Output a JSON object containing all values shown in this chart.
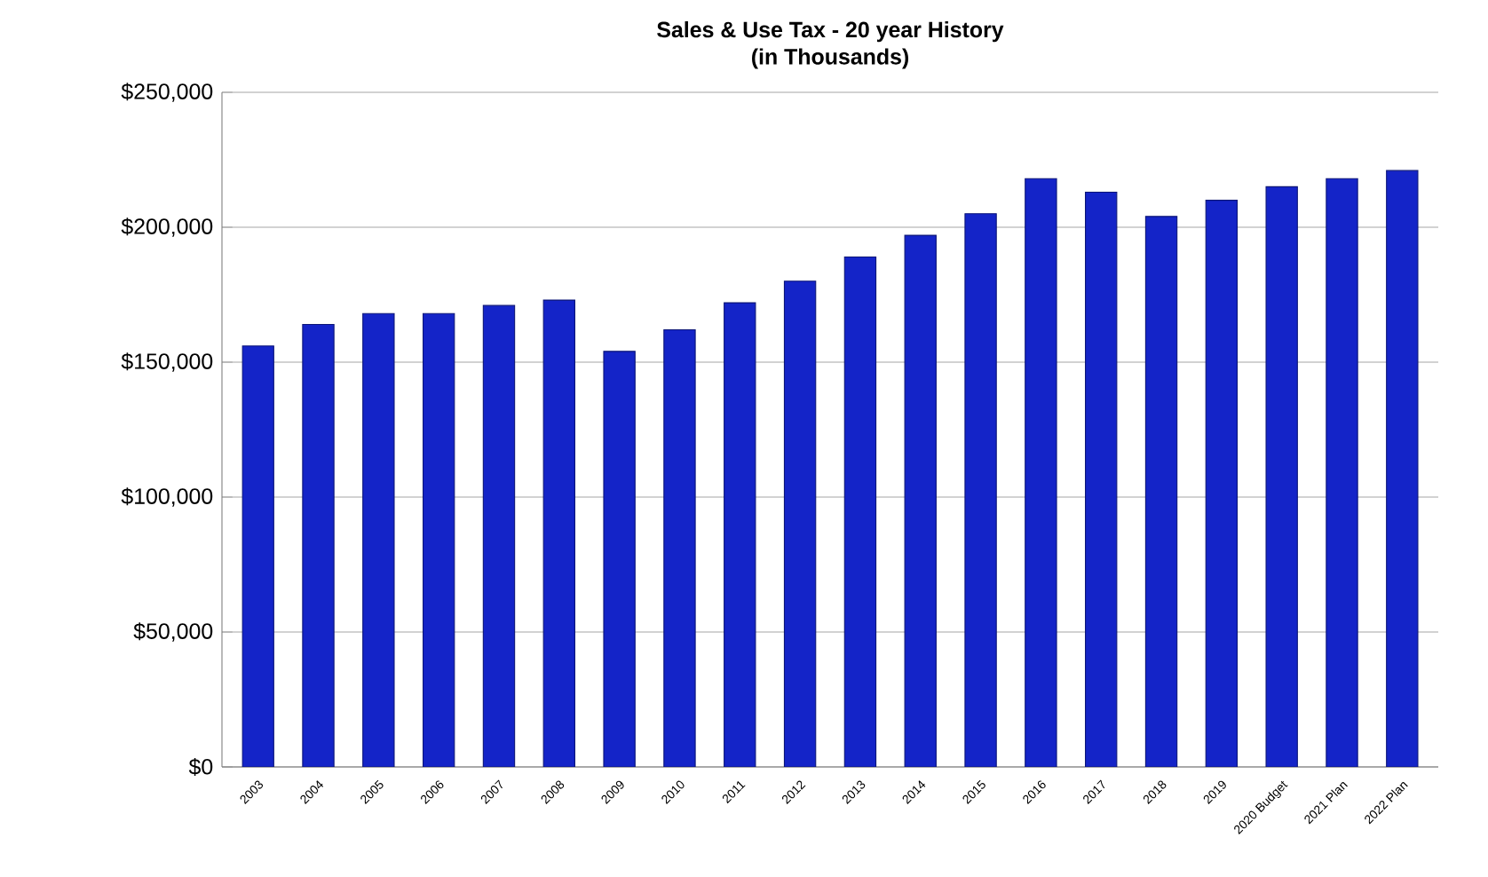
{
  "chart_data": {
    "type": "bar",
    "title": "Sales & Use Tax - 20 year History",
    "subtitle": "(in Thousands)",
    "categories": [
      "2003",
      "2004",
      "2005",
      "2006",
      "2007",
      "2008",
      "2009",
      "2010",
      "2011",
      "2012",
      "2013",
      "2014",
      "2015",
      "2016",
      "2017",
      "2018",
      "2019",
      "2020 Budget",
      "2021 Plan",
      "2022 Plan"
    ],
    "values": [
      156000,
      164000,
      168000,
      168000,
      171000,
      173000,
      154000,
      162000,
      172000,
      180000,
      189000,
      197000,
      205000,
      218000,
      213000,
      204000,
      210000,
      215000,
      218000,
      221000
    ],
    "color": "#1424c8",
    "ylim": [
      0,
      250000
    ],
    "yticks": [
      {
        "value": 0,
        "label": "$0"
      },
      {
        "value": 50000,
        "label": "$50,000"
      },
      {
        "value": 100000,
        "label": "$100,000"
      },
      {
        "value": 150000,
        "label": "$150,000"
      },
      {
        "value": 200000,
        "label": "$200,000"
      },
      {
        "value": 250000,
        "label": "$250,000"
      }
    ],
    "grid": "y"
  }
}
